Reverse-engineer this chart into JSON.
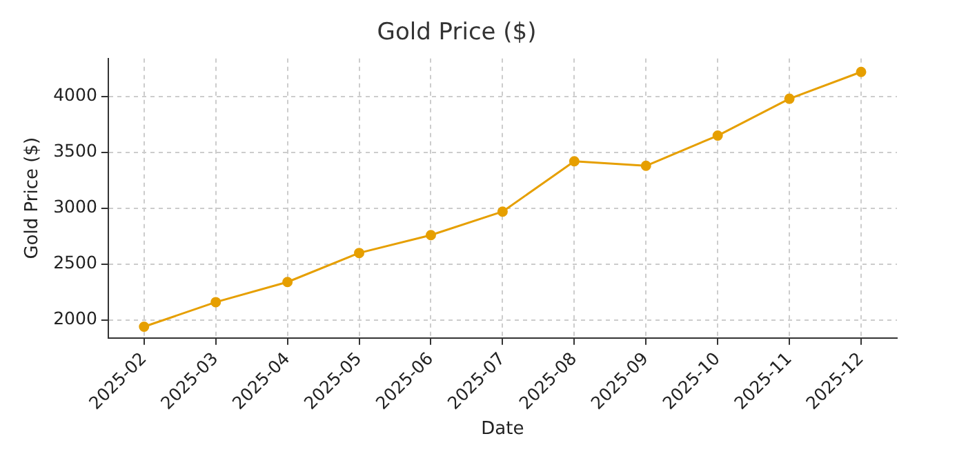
{
  "chart_data": {
    "type": "line",
    "title": "Gold Price ($)",
    "xlabel": "Date",
    "ylabel": "Gold Price ($)",
    "categories": [
      "2025-02",
      "2025-03",
      "2025-04",
      "2025-05",
      "2025-06",
      "2025-07",
      "2025-08",
      "2025-09",
      "2025-10",
      "2025-11",
      "2025-12"
    ],
    "series": [
      {
        "color": "#e69f00",
        "values": [
          1940,
          2160,
          2340,
          2600,
          2760,
          2970,
          3420,
          3380,
          3650,
          3980,
          4220
        ]
      }
    ],
    "ylim": [
      1840,
      4340
    ],
    "yticks": [
      2000,
      2500,
      3000,
      3500,
      4000
    ],
    "grid": true,
    "marker": "circle",
    "line_style": "solid",
    "legend": false
  }
}
